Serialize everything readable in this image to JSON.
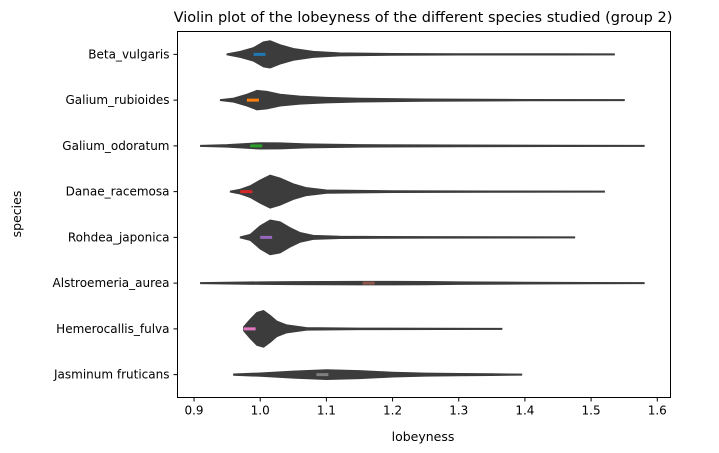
{
  "chart_data": {
    "type": "violin",
    "orientation": "horizontal",
    "title": "Violin plot of the lobeyness of the different species studied (group 2)",
    "xlabel": "lobeyness",
    "ylabel": "species",
    "xlim": [
      0.875,
      1.62
    ],
    "xticks": [
      "0.9",
      "1.0",
      "1.1",
      "1.2",
      "1.3",
      "1.4",
      "1.5",
      "1.6"
    ],
    "grid": false,
    "violin_color": "#3c3c3c",
    "categories": [
      "Beta_vulgaris",
      "Galium_rubioides",
      "Galium_odoratum",
      "Danae_racemosa",
      "Rohdea_japonica",
      "Alstroemeria_aurea",
      "Hemerocallis_fulva",
      "Jasminum fruticans"
    ],
    "series": [
      {
        "species": "Beta_vulgaris",
        "min": 0.95,
        "max": 1.535,
        "median": 1.005,
        "color": "#1f77b4",
        "density": [
          [
            0.95,
            0.02
          ],
          [
            0.97,
            0.15
          ],
          [
            0.99,
            0.35
          ],
          [
            1.005,
            0.65
          ],
          [
            1.015,
            0.7
          ],
          [
            1.03,
            0.5
          ],
          [
            1.05,
            0.3
          ],
          [
            1.08,
            0.15
          ],
          [
            1.12,
            0.07
          ],
          [
            1.2,
            0.04
          ],
          [
            1.3,
            0.03
          ],
          [
            1.45,
            0.025
          ],
          [
            1.535,
            0.02
          ]
        ]
      },
      {
        "species": "Galium_rubioides",
        "min": 0.94,
        "max": 1.55,
        "median": 0.995,
        "color": "#ff7f0e",
        "density": [
          [
            0.94,
            0.02
          ],
          [
            0.96,
            0.1
          ],
          [
            0.98,
            0.3
          ],
          [
            0.995,
            0.5
          ],
          [
            1.01,
            0.45
          ],
          [
            1.03,
            0.3
          ],
          [
            1.06,
            0.2
          ],
          [
            1.1,
            0.14
          ],
          [
            1.15,
            0.09
          ],
          [
            1.25,
            0.05
          ],
          [
            1.4,
            0.03
          ],
          [
            1.55,
            0.02
          ]
        ]
      },
      {
        "species": "Galium_odoratum",
        "min": 0.91,
        "max": 1.58,
        "median": 1.0,
        "color": "#2ca02c",
        "density": [
          [
            0.91,
            0.02
          ],
          [
            0.95,
            0.06
          ],
          [
            0.98,
            0.12
          ],
          [
            1.0,
            0.16
          ],
          [
            1.03,
            0.15
          ],
          [
            1.07,
            0.1
          ],
          [
            1.15,
            0.06
          ],
          [
            1.3,
            0.04
          ],
          [
            1.45,
            0.03
          ],
          [
            1.58,
            0.02
          ]
        ]
      },
      {
        "species": "Danae_racemosa",
        "min": 0.955,
        "max": 1.52,
        "median": 0.985,
        "color": "#d62728",
        "density": [
          [
            0.955,
            0.02
          ],
          [
            0.97,
            0.12
          ],
          [
            0.985,
            0.3
          ],
          [
            1.0,
            0.6
          ],
          [
            1.015,
            0.85
          ],
          [
            1.03,
            0.7
          ],
          [
            1.05,
            0.4
          ],
          [
            1.07,
            0.2
          ],
          [
            1.1,
            0.08
          ],
          [
            1.2,
            0.04
          ],
          [
            1.35,
            0.03
          ],
          [
            1.52,
            0.02
          ]
        ]
      },
      {
        "species": "Rohdea_japonica",
        "min": 0.97,
        "max": 1.475,
        "median": 1.015,
        "color": "#9467bd",
        "density": [
          [
            0.97,
            0.02
          ],
          [
            0.985,
            0.15
          ],
          [
            1.0,
            0.6
          ],
          [
            1.015,
            0.9
          ],
          [
            1.03,
            0.8
          ],
          [
            1.045,
            0.5
          ],
          [
            1.06,
            0.25
          ],
          [
            1.08,
            0.1
          ],
          [
            1.12,
            0.05
          ],
          [
            1.25,
            0.035
          ],
          [
            1.475,
            0.02
          ]
        ]
      },
      {
        "species": "Alstroemeria_aurea",
        "min": 0.91,
        "max": 1.58,
        "median": 1.17,
        "color": "#8c564b",
        "density": [
          [
            0.91,
            0.02
          ],
          [
            0.95,
            0.04
          ],
          [
            1.0,
            0.06
          ],
          [
            1.05,
            0.07
          ],
          [
            1.1,
            0.08
          ],
          [
            1.15,
            0.085
          ],
          [
            1.2,
            0.085
          ],
          [
            1.25,
            0.08
          ],
          [
            1.3,
            0.06
          ],
          [
            1.4,
            0.04
          ],
          [
            1.5,
            0.03
          ],
          [
            1.58,
            0.02
          ]
        ]
      },
      {
        "species": "Hemerocallis_fulva",
        "min": 0.975,
        "max": 1.365,
        "median": 0.99,
        "color": "#e377c2",
        "density": [
          [
            0.975,
            0.1
          ],
          [
            0.985,
            0.5
          ],
          [
            0.995,
            0.85
          ],
          [
            1.005,
            0.95
          ],
          [
            1.015,
            0.7
          ],
          [
            1.025,
            0.4
          ],
          [
            1.04,
            0.2
          ],
          [
            1.07,
            0.06
          ],
          [
            1.15,
            0.035
          ],
          [
            1.365,
            0.02
          ]
        ]
      },
      {
        "species": "Jasminum fruticans",
        "min": 0.96,
        "max": 1.395,
        "median": 1.1,
        "color": "#7f7f7f",
        "density": [
          [
            0.96,
            0.03
          ],
          [
            1.0,
            0.08
          ],
          [
            1.05,
            0.18
          ],
          [
            1.1,
            0.25
          ],
          [
            1.15,
            0.2
          ],
          [
            1.2,
            0.12
          ],
          [
            1.25,
            0.07
          ],
          [
            1.3,
            0.05
          ],
          [
            1.35,
            0.04
          ],
          [
            1.395,
            0.02
          ]
        ]
      }
    ]
  }
}
